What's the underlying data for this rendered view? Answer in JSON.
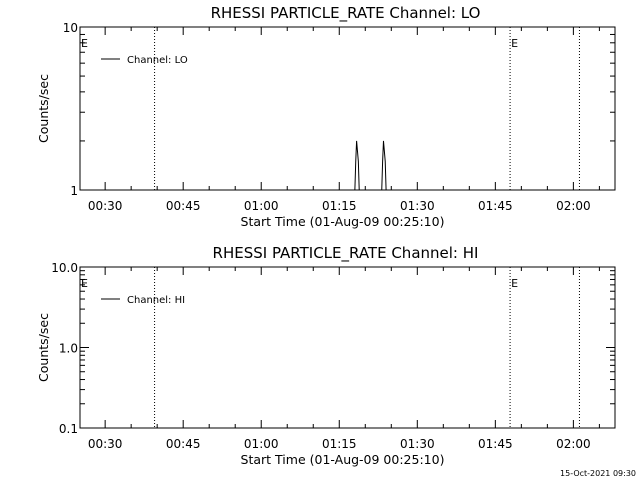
{
  "footer": {
    "timestamp": "15-Oct-2021 09:30"
  },
  "chart_data": [
    {
      "type": "line",
      "title": "RHESSI PARTICLE_RATE Channel: LO",
      "xlabel": "Start Time (01-Aug-09 00:25:10)",
      "ylabel": "Counts/sec",
      "yscale": "log",
      "xlim": [
        "00:25:10",
        "02:08:00"
      ],
      "ylim": [
        1,
        10
      ],
      "x_ticks": [
        "00:30",
        "00:45",
        "01:00",
        "01:15",
        "01:30",
        "01:45",
        "02:00"
      ],
      "y_ticks": [
        "1",
        "10"
      ],
      "legend_position": "top-left",
      "series": [
        {
          "name": "Channel: LO",
          "color": "#000000",
          "points": [
            {
              "x": "00:25:10",
              "y": 1
            },
            {
              "x": "01:18:00",
              "y": 1
            },
            {
              "x": "01:18:10",
              "y": 1.5
            },
            {
              "x": "01:18:20",
              "y": 2
            },
            {
              "x": "01:18:40",
              "y": 1.5
            },
            {
              "x": "01:18:50",
              "y": 1
            },
            {
              "x": "01:23:10",
              "y": 1
            },
            {
              "x": "01:23:20",
              "y": 1.5
            },
            {
              "x": "01:23:30",
              "y": 2
            },
            {
              "x": "01:23:50",
              "y": 1.5
            },
            {
              "x": "01:24:00",
              "y": 1
            },
            {
              "x": "02:08:00",
              "y": 1
            }
          ]
        }
      ],
      "markers": [
        {
          "label": "E",
          "x": "00:25:10"
        },
        {
          "label": "",
          "x": "00:39:30"
        },
        {
          "label": "E",
          "x": "01:47:50"
        },
        {
          "label": "",
          "x": "02:01:10"
        }
      ]
    },
    {
      "type": "line",
      "title": "RHESSI PARTICLE_RATE Channel: HI",
      "xlabel": "Start Time (01-Aug-09 00:25:10)",
      "ylabel": "Counts/sec",
      "yscale": "log",
      "xlim": [
        "00:25:10",
        "02:08:00"
      ],
      "ylim": [
        0.1,
        10
      ],
      "x_ticks": [
        "00:30",
        "00:45",
        "01:00",
        "01:15",
        "01:30",
        "01:45",
        "02:00"
      ],
      "y_ticks": [
        "0.1",
        "1.0",
        "10.0"
      ],
      "legend_position": "top-left",
      "series": [
        {
          "name": "Channel: HI",
          "color": "#000000",
          "points": []
        }
      ],
      "markers": [
        {
          "label": "E",
          "x": "00:25:10"
        },
        {
          "label": "",
          "x": "00:39:30"
        },
        {
          "label": "E",
          "x": "01:47:50"
        },
        {
          "label": "",
          "x": "02:01:10"
        }
      ]
    }
  ]
}
